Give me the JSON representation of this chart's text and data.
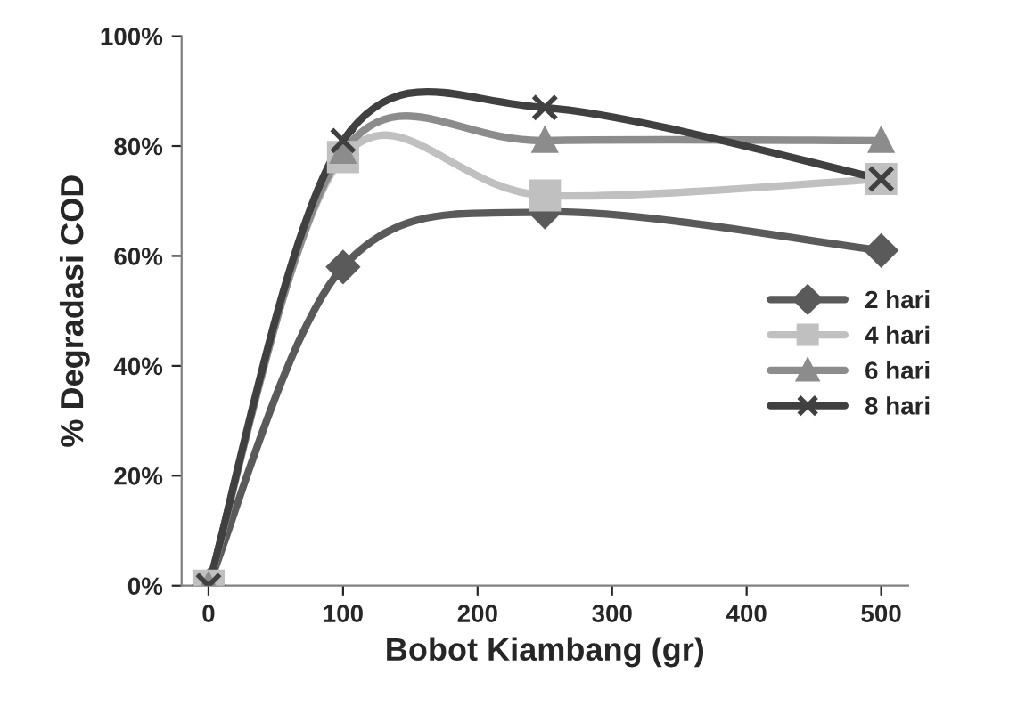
{
  "chart_data": {
    "type": "line",
    "xlabel": "Bobot Kiambang (gr)",
    "ylabel": "% Degradasi COD",
    "x": [
      0,
      100,
      250,
      500
    ],
    "series": [
      {
        "name": "2 hari",
        "color": "#5a5a5a",
        "marker": "diamond",
        "values": [
          0,
          58,
          68,
          61
        ]
      },
      {
        "name": "4 hari",
        "color": "#c0c0c0",
        "marker": "square",
        "values": [
          0,
          78,
          71,
          74
        ]
      },
      {
        "name": "6 hari",
        "color": "#8c8c8c",
        "marker": "triangle",
        "values": [
          0,
          79,
          81,
          81
        ]
      },
      {
        "name": "8 hari",
        "color": "#404040",
        "marker": "cross",
        "values": [
          0,
          81,
          87,
          74
        ]
      }
    ],
    "xlim": [
      -20,
      520
    ],
    "xticks": [
      0,
      100,
      200,
      300,
      400,
      500
    ],
    "ylim": [
      0,
      100
    ],
    "yticks": [
      {
        "value": 0,
        "label": "0%"
      },
      {
        "value": 20,
        "label": "20%"
      },
      {
        "value": 40,
        "label": "40%"
      },
      {
        "value": 60,
        "label": "60%"
      },
      {
        "value": 80,
        "label": "80%"
      },
      {
        "value": 100,
        "label": "100%"
      }
    ],
    "grid": false,
    "legend": "right",
    "line_style": "solid"
  }
}
